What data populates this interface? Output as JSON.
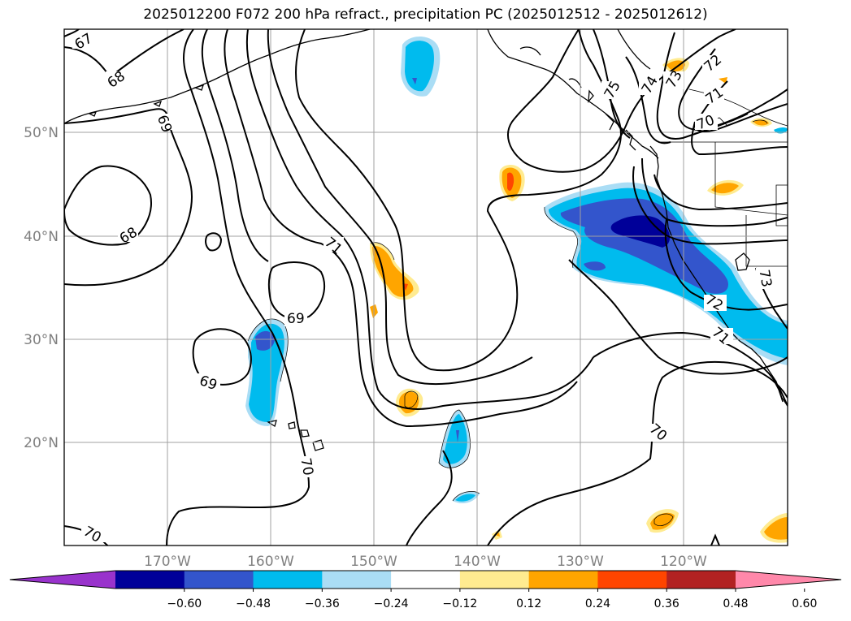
{
  "title": "2025012200 F072 200 hPa refract., precipitation PC (2025012512 - 2025012612)",
  "map": {
    "lat_labels": [
      "50°N",
      "40°N",
      "30°N",
      "20°N"
    ],
    "lon_labels": [
      "170°W",
      "160°W",
      "150°W",
      "140°W",
      "130°W",
      "120°W"
    ],
    "gridline_color": "#a0a0a0"
  },
  "contour_labels": [
    "67",
    "68",
    "69",
    "68",
    "71",
    "69",
    "69",
    "70",
    "70",
    "75",
    "74",
    "73",
    "72",
    "71",
    "70",
    "72",
    "71",
    "73",
    "70"
  ],
  "colorbar": {
    "colors": [
      "#9933cc",
      "#000099",
      "#3355cc",
      "#00bbee",
      "#aaddf5",
      "#ffffff",
      "#ffeb90",
      "#ffa500",
      "#ff4500",
      "#b22222",
      "#ff88aa"
    ],
    "tick_labels": [
      "−0.60",
      "−0.48",
      "−0.36",
      "−0.24",
      "−0.12",
      "0.12",
      "0.24",
      "0.36",
      "0.48",
      "0.60"
    ]
  }
}
